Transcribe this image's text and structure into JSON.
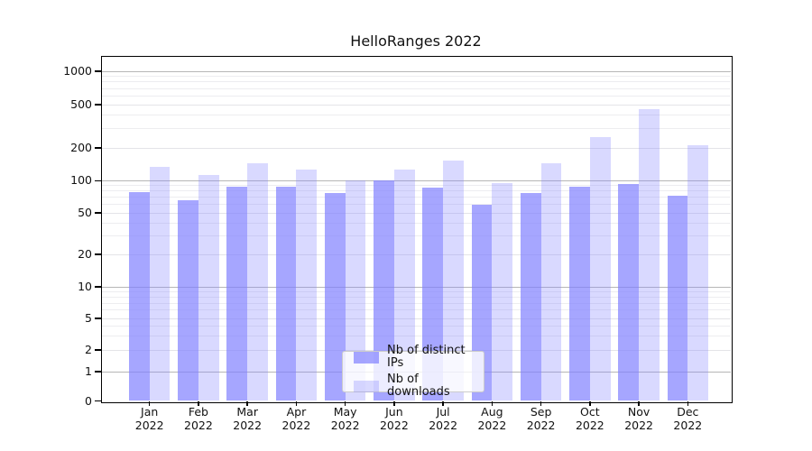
{
  "chart_data": {
    "type": "bar",
    "title": "HelloRanges 2022",
    "categories": [
      "Jan",
      "Feb",
      "Mar",
      "Apr",
      "May",
      "Jun",
      "Jul",
      "Aug",
      "Sep",
      "Oct",
      "Nov",
      "Dec"
    ],
    "category_year": "2022",
    "series": [
      {
        "name": "Nb of distinct IPs",
        "color": "#8080ff",
        "alpha": 0.7,
        "values": [
          78,
          66,
          88,
          88,
          76,
          100,
          86,
          59,
          76,
          88,
          93,
          73
        ]
      },
      {
        "name": "Nb of downloads",
        "color": "#8080ff",
        "alpha": 0.3,
        "values": [
          134,
          112,
          144,
          127,
          100,
          127,
          154,
          95,
          145,
          253,
          455,
          212
        ]
      }
    ],
    "yscale": "symlog",
    "yticks": [
      0,
      1,
      2,
      5,
      10,
      20,
      50,
      100,
      200,
      500,
      1000
    ],
    "minor_yticks": [
      3,
      4,
      6,
      7,
      8,
      9,
      30,
      40,
      60,
      70,
      80,
      90,
      300,
      400,
      600,
      700,
      800,
      900
    ],
    "grid": "both",
    "legend_position": "lower-center-inside",
    "colors": {
      "major_grid": "#b6b6b6",
      "labeled_grid": "#e4e4e8",
      "minor_grid": "#ededf0",
      "axis": "#000000",
      "text": "#111111"
    }
  }
}
